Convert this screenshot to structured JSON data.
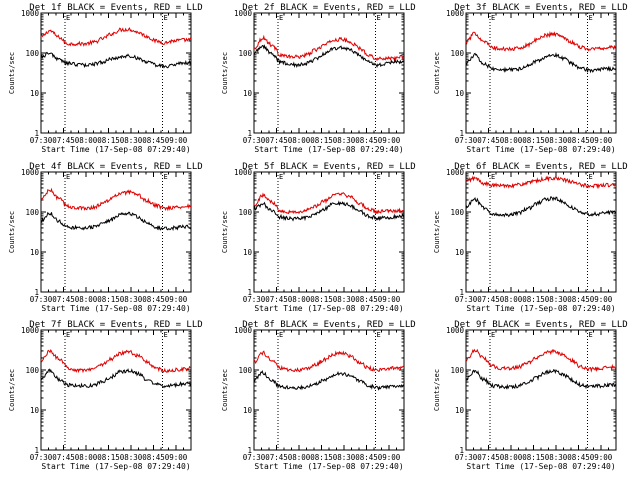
{
  "chart_data": [
    {
      "type": "line",
      "title": "Det 1f BLACK = Events, RED = LLD",
      "black_values": [
        80,
        100,
        68,
        56,
        52,
        50,
        53,
        60,
        70,
        80,
        84,
        75,
        60,
        50,
        46,
        50,
        55,
        58
      ],
      "red_values": [
        250,
        360,
        250,
        170,
        170,
        170,
        185,
        230,
        300,
        380,
        390,
        330,
        260,
        200,
        180,
        200,
        210,
        215
      ]
    },
    {
      "type": "line",
      "title": "Det 2f BLACK = Events, RED = LLD",
      "black_values": [
        100,
        150,
        95,
        60,
        52,
        50,
        55,
        70,
        95,
        130,
        140,
        115,
        85,
        60,
        50,
        55,
        60,
        60
      ],
      "red_values": [
        130,
        240,
        160,
        90,
        80,
        80,
        90,
        120,
        160,
        210,
        220,
        180,
        130,
        90,
        70,
        75,
        75,
        80
      ]
    },
    {
      "type": "line",
      "title": "Det 3f BLACK = Events, RED = LLD",
      "black_values": [
        55,
        90,
        55,
        40,
        38,
        38,
        40,
        48,
        62,
        80,
        90,
        75,
        55,
        42,
        36,
        38,
        40,
        40
      ],
      "red_values": [
        190,
        310,
        200,
        135,
        125,
        125,
        130,
        160,
        210,
        280,
        300,
        250,
        185,
        140,
        125,
        130,
        135,
        140
      ]
    },
    {
      "type": "line",
      "title": "Det 4f BLACK = Events, RED = LLD",
      "black_values": [
        60,
        95,
        58,
        42,
        40,
        40,
        42,
        50,
        65,
        85,
        92,
        75,
        55,
        42,
        38,
        40,
        42,
        42
      ],
      "red_values": [
        210,
        350,
        220,
        140,
        125,
        125,
        130,
        165,
        220,
        290,
        310,
        260,
        190,
        145,
        125,
        130,
        135,
        140
      ]
    },
    {
      "type": "line",
      "title": "Det 5f BLACK = Events, RED = LLD",
      "black_values": [
        120,
        160,
        105,
        75,
        68,
        68,
        72,
        90,
        120,
        160,
        170,
        140,
        105,
        78,
        70,
        72,
        75,
        78
      ],
      "red_values": [
        150,
        260,
        180,
        110,
        100,
        100,
        110,
        140,
        190,
        260,
        280,
        230,
        165,
        115,
        100,
        105,
        105,
        110
      ]
    },
    {
      "type": "line",
      "title": "Det 6f BLACK = Events, RED = LLD",
      "black_values": [
        130,
        210,
        130,
        90,
        85,
        85,
        95,
        120,
        160,
        210,
        220,
        180,
        130,
        95,
        85,
        90,
        95,
        100
      ],
      "red_values": [
        600,
        700,
        520,
        460,
        460,
        460,
        480,
        530,
        600,
        680,
        700,
        640,
        560,
        480,
        450,
        460,
        470,
        480
      ]
    },
    {
      "type": "line",
      "title": "Det 7f BLACK = Events, RED = LLD",
      "black_values": [
        60,
        100,
        60,
        42,
        40,
        40,
        42,
        52,
        68,
        90,
        96,
        80,
        58,
        44,
        40,
        42,
        45,
        46
      ],
      "red_values": [
        170,
        300,
        190,
        115,
        100,
        100,
        110,
        140,
        190,
        260,
        280,
        230,
        160,
        110,
        95,
        100,
        105,
        110
      ]
    },
    {
      "type": "line",
      "title": "Det 8f BLACK = Events, RED = LLD",
      "black_values": [
        55,
        85,
        55,
        38,
        36,
        36,
        38,
        45,
        58,
        75,
        82,
        70,
        52,
        40,
        36,
        38,
        40,
        40
      ],
      "red_values": [
        160,
        270,
        170,
        110,
        100,
        100,
        108,
        135,
        180,
        250,
        270,
        220,
        155,
        110,
        100,
        108,
        112,
        115
      ]
    },
    {
      "type": "line",
      "title": "Det 9f BLACK = Events, RED = LLD",
      "black_values": [
        60,
        95,
        58,
        40,
        38,
        38,
        40,
        50,
        65,
        86,
        92,
        78,
        56,
        42,
        38,
        40,
        42,
        43
      ],
      "red_values": [
        180,
        310,
        200,
        125,
        110,
        110,
        118,
        150,
        200,
        270,
        290,
        240,
        170,
        120,
        105,
        110,
        115,
        120
      ]
    }
  ],
  "shared": {
    "ylabel": "Counts/sec",
    "xlabel": "Start Time (17-Sep-08 07:29:40)",
    "xticks": [
      "07:30",
      "07:45",
      "08:00",
      "08:15",
      "08:30",
      "08:45",
      "09:00"
    ],
    "yticks": [
      "1",
      "10",
      "100",
      "1000"
    ],
    "marker_labels": [
      "E",
      "E"
    ],
    "ylim": [
      1,
      1000
    ],
    "yscale": "log",
    "xlim_minutes": [
      0,
      100
    ],
    "marker_minutes": [
      16,
      81
    ]
  },
  "colors": {
    "black_series": "#000000",
    "red_series": "#e00000",
    "axes": "#000000"
  }
}
